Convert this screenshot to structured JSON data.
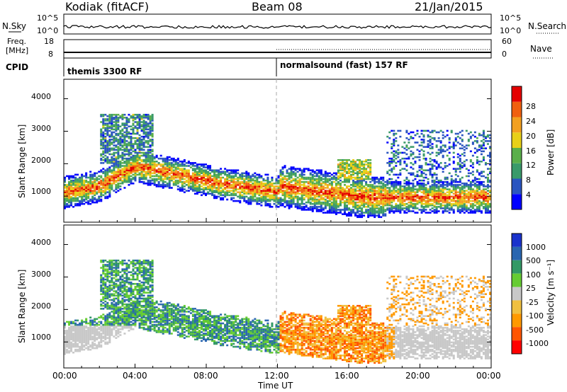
{
  "header": {
    "station": "Kodiak (fitACF)",
    "beam": "Beam 08",
    "date": "21/Jan/2015"
  },
  "noise_panel": {
    "left_label": "N.Sky",
    "right_label": "N.Search",
    "left_ticks": [
      "10^5",
      "10^0"
    ],
    "right_ticks": [
      "10^5",
      "10^0"
    ]
  },
  "freq_panel": {
    "left_label_1": "Freq.",
    "left_label_2": "[MHz]",
    "right_label": "Nave",
    "left_ticks": [
      "18",
      "8"
    ],
    "right_ticks": [
      "60",
      "0"
    ]
  },
  "cpid_panel": {
    "label": "CPID",
    "modes": [
      "themis 3300 RF",
      "normalsound (fast) 157 RF"
    ]
  },
  "colors": {
    "power": [
      "#0000ff",
      "#2a55c0",
      "#3a9a6a",
      "#5aaf4a",
      "#e8d018",
      "#f3a020",
      "#f06010",
      "#e40000"
    ],
    "velocity": [
      "#ff0000",
      "#ff5500",
      "#ff9900",
      "#f0c040",
      "#c8c8c8",
      "#66cc33",
      "#339966",
      "#2a66b0",
      "#1a33cc"
    ],
    "ground_scatter": "#c8c8c8"
  },
  "chart_data": [
    {
      "type": "heatmap",
      "name": "power",
      "ylabel": "Slant Range [km]",
      "yticks": [
        "1000",
        "2000",
        "3000",
        "4000"
      ],
      "ylim": [
        200,
        4600
      ],
      "xlim": [
        0,
        24
      ],
      "colorbar": {
        "label": "Power [dB]",
        "ticks": [
          "4",
          "8",
          "12",
          "16",
          "20",
          "24",
          "28"
        ],
        "range": [
          0,
          32
        ]
      },
      "features": [
        {
          "hours": [
            0,
            24
          ],
          "range_km": [
            700,
            1400
          ],
          "level": "high"
        },
        {
          "hours": [
            2,
            5
          ],
          "range_km": [
            2000,
            3500
          ],
          "level": "medium"
        },
        {
          "hours": [
            12,
            18
          ],
          "range_km": [
            800,
            1800
          ],
          "level": "high"
        }
      ]
    },
    {
      "type": "heatmap",
      "name": "velocity",
      "ylabel": "Slant Range [km]",
      "yticks": [
        "1000",
        "2000",
        "3000",
        "4000"
      ],
      "ylim": [
        200,
        4600
      ],
      "xlim": [
        0,
        24
      ],
      "colorbar": {
        "label": "Velocity [m s⁻¹]",
        "ticks": [
          "1000",
          "500",
          "100",
          "25",
          "-25",
          "-100",
          "-500",
          "-1000"
        ]
      },
      "xlabel": "Time UT",
      "xticks": [
        "00:00",
        "04:00",
        "08:00",
        "12:00",
        "16:00",
        "20:00",
        "00:00"
      ]
    }
  ]
}
